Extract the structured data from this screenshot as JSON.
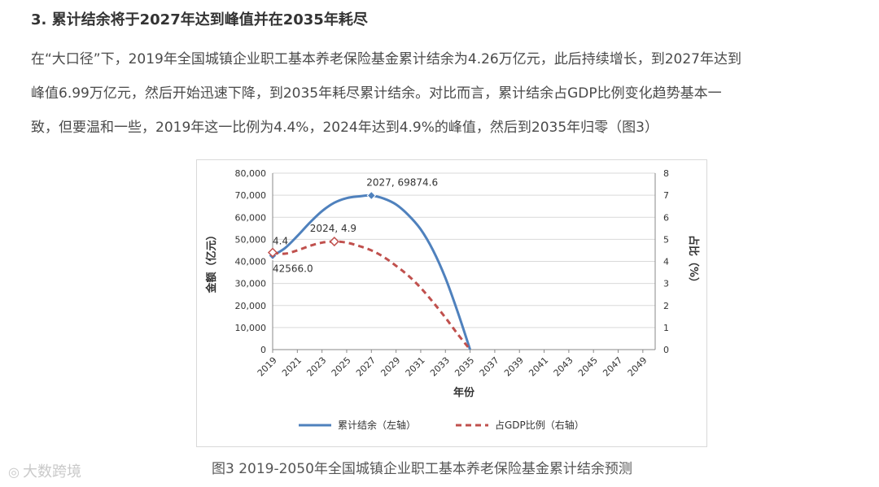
{
  "article": {
    "heading": "3. 累计结余将于2027年达到峰值并在2035年耗尽",
    "paragraph_lines": [
      "在“大口径”下，2019年全国城镇企业职工基本养老保险基金累计结余为4.26万亿元，此后持续增长，到2027年达到",
      "峰值6.99万亿元，然后开始迅速下降，到2035年耗尽累计结余。对比而言，累计结余占GDP比例变化趋势基本一",
      "致，但要温和一些，2019年这一比例为4.4%，2024年达到4.9%的峰值，然后到2035年归零（图3）"
    ],
    "caption": "图3   2019-2050年全国城镇企业职工基本养老保险基金累计结余预测"
  },
  "watermark": {
    "icon": "camera-icon",
    "text": "大数跨境"
  },
  "colors": {
    "blue_series": "#4f81bd",
    "red_series": "#c0504d",
    "grid": "#d9d9d9"
  },
  "chart_data": {
    "type": "line",
    "xlabel": "年份",
    "ylabel_left": "金额（亿元）",
    "ylabel_right": "占比（%）",
    "x_ticks": [
      "2019",
      "2021",
      "2023",
      "2025",
      "2027",
      "2029",
      "2031",
      "2033",
      "2035",
      "2037",
      "2039",
      "2041",
      "2043",
      "2045",
      "2047",
      "2049"
    ],
    "xlim": [
      2019,
      2050
    ],
    "ylim_left": [
      0,
      80000
    ],
    "ylim_right": [
      0,
      8
    ],
    "y_ticks_left": [
      "0",
      "10,000",
      "20,000",
      "30,000",
      "40,000",
      "50,000",
      "60,000",
      "70,000",
      "80,000"
    ],
    "y_ticks_right": [
      "0",
      "1",
      "2",
      "3",
      "4",
      "5",
      "6",
      "7",
      "8"
    ],
    "grid": "horizontal",
    "legend_position": "bottom",
    "series": [
      {
        "name": "累计结余（左轴）",
        "axis": "left",
        "style": "solid",
        "x": [
          2019,
          2020,
          2021,
          2022,
          2023,
          2024,
          2025,
          2026,
          2027,
          2028,
          2029,
          2030,
          2031,
          2032,
          2033,
          2034,
          2035
        ],
        "y": [
          42566.0,
          46000,
          51500,
          57500,
          62800,
          66600,
          68700,
          69500,
          69874.6,
          68500,
          65800,
          61000,
          54500,
          45000,
          32500,
          17000,
          0
        ]
      },
      {
        "name": "占GDP比例（右轴）",
        "axis": "right",
        "style": "dashed",
        "x": [
          2019,
          2020,
          2021,
          2022,
          2023,
          2024,
          2025,
          2026,
          2027,
          2028,
          2029,
          2030,
          2031,
          2032,
          2033,
          2034,
          2035
        ],
        "y": [
          4.4,
          4.35,
          4.5,
          4.7,
          4.85,
          4.9,
          4.85,
          4.7,
          4.5,
          4.2,
          3.8,
          3.35,
          2.8,
          2.15,
          1.45,
          0.7,
          0
        ]
      }
    ],
    "annotations": [
      {
        "series": 0,
        "x": 2019,
        "y": 42566.0,
        "label": "42566.0",
        "marker": true
      },
      {
        "series": 0,
        "x": 2027,
        "y": 69874.6,
        "label": "2027, 69874.6",
        "marker": true
      },
      {
        "series": 1,
        "x": 2019,
        "y": 4.4,
        "label": "4.4",
        "marker": true
      },
      {
        "series": 1,
        "x": 2024,
        "y": 4.9,
        "label": "2024, 4.9",
        "marker": true
      }
    ]
  }
}
